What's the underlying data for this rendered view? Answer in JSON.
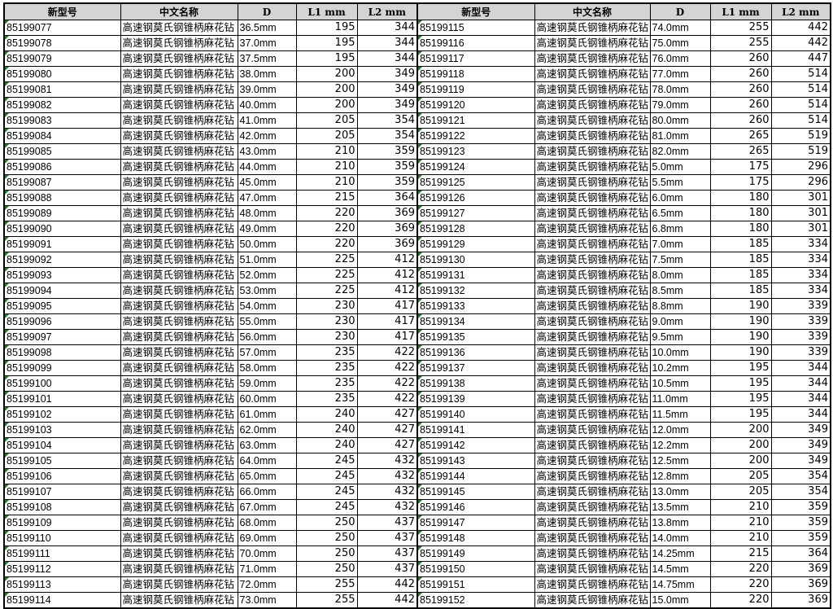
{
  "headers": [
    "新型号",
    "中文名称",
    "D",
    "L1  mm",
    "L2  mm"
  ],
  "product_name": "高速钢莫氏钢锥柄麻花钻",
  "colors": {
    "header_bg": "#d4d4d4",
    "comment_marker": "#1a7f1a"
  },
  "left_rows": [
    [
      "85199077",
      "36.5mm",
      195,
      344
    ],
    [
      "85199078",
      "37.0mm",
      195,
      344
    ],
    [
      "85199079",
      "37.5mm",
      195,
      344
    ],
    [
      "85199080",
      "38.0mm",
      200,
      349
    ],
    [
      "85199081",
      "39.0mm",
      200,
      349
    ],
    [
      "85199082",
      "40.0mm",
      200,
      349
    ],
    [
      "85199083",
      "41.0mm",
      205,
      354
    ],
    [
      "85199084",
      "42.0mm",
      205,
      354
    ],
    [
      "85199085",
      "43.0mm",
      210,
      359
    ],
    [
      "85199086",
      "44.0mm",
      210,
      359
    ],
    [
      "85199087",
      "45.0mm",
      210,
      359
    ],
    [
      "85199088",
      "47.0mm",
      215,
      364
    ],
    [
      "85199089",
      "48.0mm",
      220,
      369
    ],
    [
      "85199090",
      "49.0mm",
      220,
      369
    ],
    [
      "85199091",
      "50.0mm",
      220,
      369
    ],
    [
      "85199092",
      "51.0mm",
      225,
      412
    ],
    [
      "85199093",
      "52.0mm",
      225,
      412
    ],
    [
      "85199094",
      "53.0mm",
      225,
      412
    ],
    [
      "85199095",
      "54.0mm",
      230,
      417
    ],
    [
      "85199096",
      "55.0mm",
      230,
      417
    ],
    [
      "85199097",
      "56.0mm",
      230,
      417
    ],
    [
      "85199098",
      "57.0mm",
      235,
      422
    ],
    [
      "85199099",
      "58.0mm",
      235,
      422
    ],
    [
      "85199100",
      "59.0mm",
      235,
      422
    ],
    [
      "85199101",
      "60.0mm",
      235,
      422
    ],
    [
      "85199102",
      "61.0mm",
      240,
      427
    ],
    [
      "85199103",
      "62.0mm",
      240,
      427
    ],
    [
      "85199104",
      "63.0mm",
      240,
      427
    ],
    [
      "85199105",
      "64.0mm",
      245,
      432
    ],
    [
      "85199106",
      "65.0mm",
      245,
      432
    ],
    [
      "85199107",
      "66.0mm",
      245,
      432
    ],
    [
      "85199108",
      "67.0mm",
      245,
      432
    ],
    [
      "85199109",
      "68.0mm",
      250,
      437
    ],
    [
      "85199110",
      "69.0mm",
      250,
      437
    ],
    [
      "85199111",
      "70.0mm",
      250,
      437
    ],
    [
      "85199112",
      "71.0mm",
      250,
      437
    ],
    [
      "85199113",
      "72.0mm",
      255,
      442
    ],
    [
      "85199114",
      "73.0mm",
      255,
      442
    ]
  ],
  "right_rows": [
    [
      "85199115",
      "74.0mm",
      255,
      442
    ],
    [
      "85199116",
      "75.0mm",
      255,
      442
    ],
    [
      "85199117",
      "76.0mm",
      260,
      447
    ],
    [
      "85199118",
      "77.0mm",
      260,
      514
    ],
    [
      "85199119",
      "78.0mm",
      260,
      514
    ],
    [
      "85199120",
      "79.0mm",
      260,
      514
    ],
    [
      "85199121",
      "80.0mm",
      260,
      514
    ],
    [
      "85199122",
      "81.0mm",
      265,
      519
    ],
    [
      "85199123",
      "82.0mm",
      265,
      519
    ],
    [
      "85199124",
      "5.0mm",
      175,
      296
    ],
    [
      "85199125",
      "5.5mm",
      175,
      296
    ],
    [
      "85199126",
      "6.0mm",
      180,
      301
    ],
    [
      "85199127",
      "6.5mm",
      180,
      301
    ],
    [
      "85199128",
      "6.8mm",
      180,
      301
    ],
    [
      "85199129",
      "7.0mm",
      185,
      334
    ],
    [
      "85199130",
      "7.5mm",
      185,
      334
    ],
    [
      "85199131",
      "8.0mm",
      185,
      334
    ],
    [
      "85199132",
      "8.5mm",
      185,
      334
    ],
    [
      "85199133",
      "8.8mm",
      190,
      339
    ],
    [
      "85199134",
      "9.0mm",
      190,
      339
    ],
    [
      "85199135",
      "9.5mm",
      190,
      339
    ],
    [
      "85199136",
      "10.0mm",
      190,
      339
    ],
    [
      "85199137",
      "10.2mm",
      195,
      344
    ],
    [
      "85199138",
      "10.5mm",
      195,
      344
    ],
    [
      "85199139",
      "11.0mm",
      195,
      344
    ],
    [
      "85199140",
      "11.5mm",
      195,
      344
    ],
    [
      "85199141",
      "12.0mm",
      200,
      349
    ],
    [
      "85199142",
      "12.2mm",
      200,
      349
    ],
    [
      "85199143",
      "12.5mm",
      200,
      349
    ],
    [
      "85199144",
      "12.8mm",
      205,
      354
    ],
    [
      "85199145",
      "13.0mm",
      205,
      354
    ],
    [
      "85199146",
      "13.5mm",
      210,
      359
    ],
    [
      "85199147",
      "13.8mm",
      210,
      359
    ],
    [
      "85199148",
      "14.0mm",
      210,
      359
    ],
    [
      "85199149",
      "14.25mm",
      215,
      364
    ],
    [
      "85199150",
      "14.5mm",
      220,
      369
    ],
    [
      "85199151",
      "14.75mm",
      220,
      369
    ],
    [
      "85199152",
      "15.0mm",
      220,
      369
    ]
  ]
}
